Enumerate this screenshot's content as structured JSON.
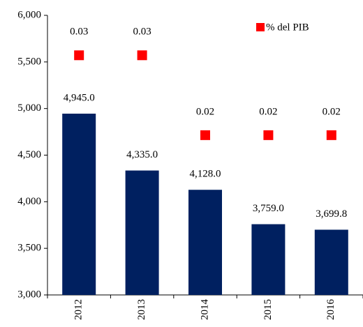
{
  "chart_data": {
    "type": "bar",
    "categories": [
      "2012",
      "2013",
      "2014",
      "2015",
      "2016"
    ],
    "series": [
      {
        "name": null,
        "color": "#002060",
        "values": [
          4945.0,
          4335.0,
          4128.0,
          3759.0,
          3699.8
        ],
        "value_labels": [
          "4,945.0",
          "4,335.0",
          "4,128.0",
          "3,759.0",
          "3,699.8"
        ]
      },
      {
        "name": "% del PIB",
        "color": "#ff0000",
        "axis": "y2",
        "marker": "square",
        "values": [
          0.03,
          0.03,
          0.02,
          0.02,
          0.02
        ],
        "value_labels": [
          "0.03",
          "0.03",
          "0.02",
          "0.02",
          "0.02"
        ]
      }
    ],
    "ylim": [
      3000,
      6000
    ],
    "yticks": [
      {
        "value": 3000,
        "label": "3,000"
      },
      {
        "value": 3500,
        "label": "3,500"
      },
      {
        "value": 4000,
        "label": "4,000"
      },
      {
        "value": 4500,
        "label": "4,500"
      },
      {
        "value": 5000,
        "label": "5,000"
      },
      {
        "value": 5500,
        "label": "5,500"
      },
      {
        "value": 6000,
        "label": "6,000"
      }
    ],
    "y2lim": [
      0,
      0.035
    ],
    "legend": "top-right"
  }
}
